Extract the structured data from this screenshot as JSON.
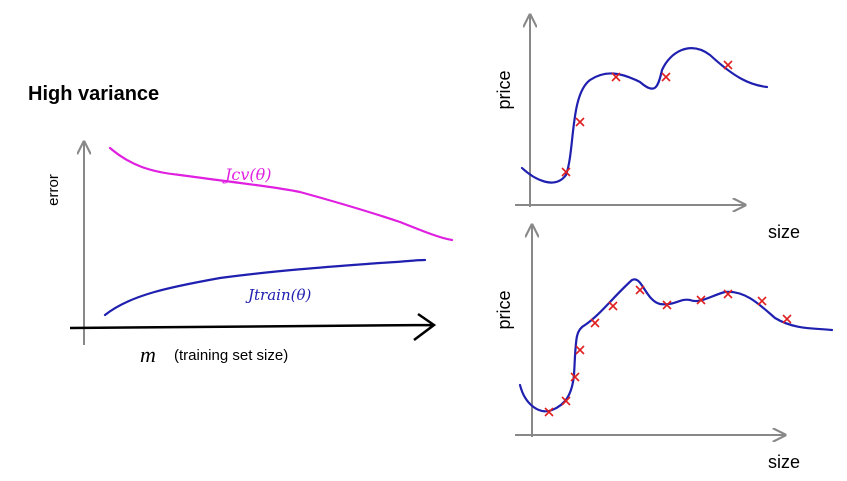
{
  "title": "High variance",
  "left_plot": {
    "y_label": "error",
    "x_symbol": "m",
    "x_label": "(training set size)",
    "cv_curve_label": "Jcv(θ)",
    "train_curve_label": "Jtrain(θ)"
  },
  "top_right_plot": {
    "y_label": "price",
    "x_label": "size"
  },
  "bottom_right_plot": {
    "y_label": "price",
    "x_label": "size"
  }
}
